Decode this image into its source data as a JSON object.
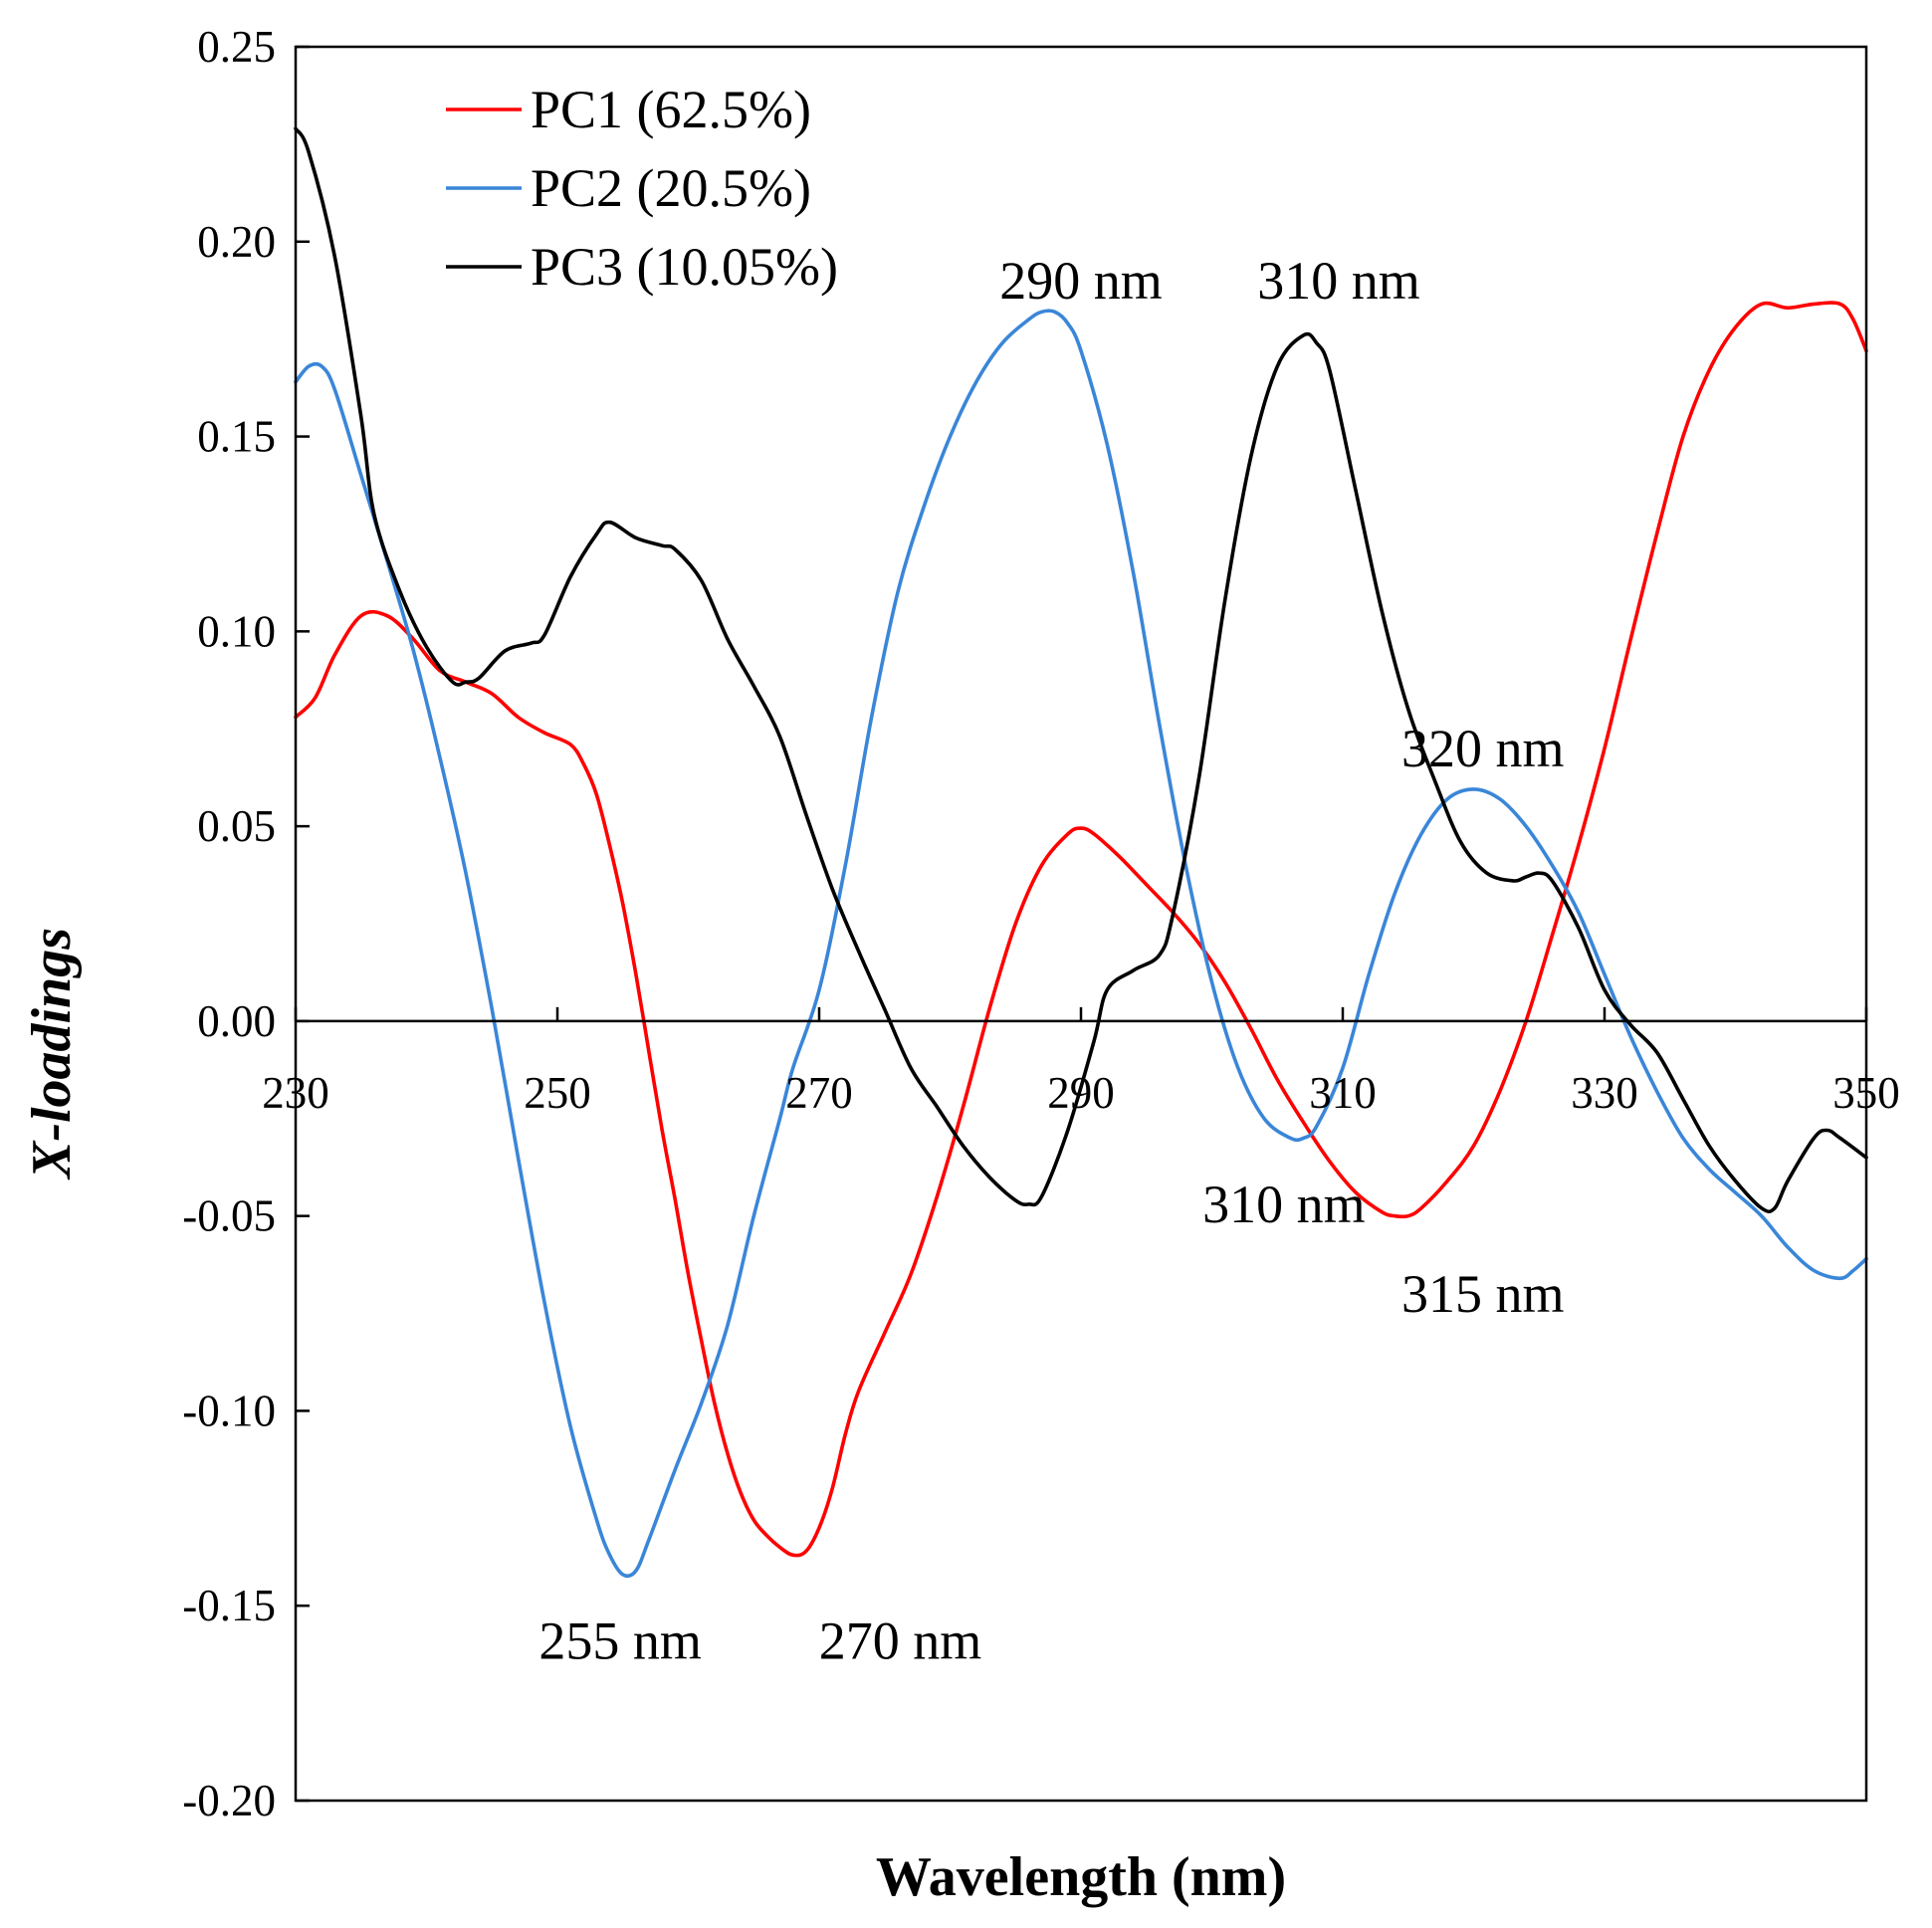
{
  "chart_data": {
    "type": "line",
    "title": "",
    "xlabel": "Wavelength (nm)",
    "ylabel": "X-loadings",
    "xlim": [
      230,
      350
    ],
    "ylim": [
      -0.2,
      0.25
    ],
    "x_ticks": [
      230,
      250,
      270,
      290,
      310,
      330,
      350
    ],
    "x_tick_labels": [
      "230",
      "250",
      "270",
      "290",
      "310",
      "330",
      "350"
    ],
    "y_ticks": [
      0.25,
      0.2,
      0.15,
      0.1,
      0.05,
      0.0,
      -0.05,
      -0.1,
      -0.15,
      -0.2
    ],
    "y_tick_labels": [
      "0.25",
      "0.20",
      "0.15",
      "0.10",
      "0.05",
      "0.00",
      "-0.05",
      "-0.10",
      "-0.15",
      "-0.20"
    ],
    "grid": false,
    "legend_position": "top-left",
    "series": [
      {
        "name": "PC1 (62.5%)",
        "color": "#ff0000",
        "points": [
          [
            230,
            0.078
          ],
          [
            231.5,
            0.083
          ],
          [
            233,
            0.094
          ],
          [
            235,
            0.104
          ],
          [
            237,
            0.104
          ],
          [
            239,
            0.098
          ],
          [
            241,
            0.09
          ],
          [
            243,
            0.087
          ],
          [
            245,
            0.084
          ],
          [
            247,
            0.078
          ],
          [
            249,
            0.074
          ],
          [
            251,
            0.071
          ],
          [
            252,
            0.066
          ],
          [
            253,
            0.058
          ],
          [
            254,
            0.045
          ],
          [
            255,
            0.03
          ],
          [
            256,
            0.012
          ],
          [
            257,
            -0.008
          ],
          [
            258,
            -0.028
          ],
          [
            259,
            -0.046
          ],
          [
            260,
            -0.065
          ],
          [
            261,
            -0.082
          ],
          [
            262,
            -0.098
          ],
          [
            263,
            -0.111
          ],
          [
            264,
            -0.121
          ],
          [
            265,
            -0.128
          ],
          [
            266,
            -0.132
          ],
          [
            267,
            -0.135
          ],
          [
            268,
            -0.137
          ],
          [
            269,
            -0.136
          ],
          [
            270,
            -0.13
          ],
          [
            271,
            -0.12
          ],
          [
            272,
            -0.106
          ],
          [
            273,
            -0.095
          ],
          [
            275,
            -0.08
          ],
          [
            277,
            -0.065
          ],
          [
            279,
            -0.045
          ],
          [
            281,
            -0.022
          ],
          [
            283,
            0.003
          ],
          [
            285,
            0.025
          ],
          [
            287,
            0.04
          ],
          [
            289,
            0.048
          ],
          [
            290,
            0.0495
          ],
          [
            291,
            0.048
          ],
          [
            293,
            0.042
          ],
          [
            295,
            0.035
          ],
          [
            297,
            0.028
          ],
          [
            299,
            0.02
          ],
          [
            301,
            0.01
          ],
          [
            303,
            -0.002
          ],
          [
            305,
            -0.015
          ],
          [
            307,
            -0.026
          ],
          [
            309,
            -0.036
          ],
          [
            311,
            -0.044
          ],
          [
            313,
            -0.049
          ],
          [
            314,
            -0.05
          ],
          [
            315,
            -0.05
          ],
          [
            316,
            -0.048
          ],
          [
            318,
            -0.041
          ],
          [
            320,
            -0.032
          ],
          [
            322,
            -0.018
          ],
          [
            324,
            0.0
          ],
          [
            326,
            0.022
          ],
          [
            328,
            0.045
          ],
          [
            330,
            0.07
          ],
          [
            332,
            0.098
          ],
          [
            334,
            0.125
          ],
          [
            336,
            0.15
          ],
          [
            338,
            0.167
          ],
          [
            340,
            0.178
          ],
          [
            342,
            0.184
          ],
          [
            344,
            0.183
          ],
          [
            346,
            0.184
          ],
          [
            348,
            0.184
          ],
          [
            349,
            0.18
          ],
          [
            350,
            0.172
          ]
        ]
      },
      {
        "name": "PC2 (20.5%)",
        "color": "#3a86d8",
        "points": [
          [
            230,
            0.164
          ],
          [
            231,
            0.168
          ],
          [
            232,
            0.168
          ],
          [
            233,
            0.162
          ],
          [
            235,
            0.14
          ],
          [
            237,
            0.118
          ],
          [
            239,
            0.095
          ],
          [
            241,
            0.068
          ],
          [
            243,
            0.038
          ],
          [
            245,
            0.003
          ],
          [
            247,
            -0.035
          ],
          [
            249,
            -0.072
          ],
          [
            251,
            -0.104
          ],
          [
            253,
            -0.128
          ],
          [
            254,
            -0.137
          ],
          [
            255,
            -0.142
          ],
          [
            256,
            -0.141
          ],
          [
            257,
            -0.133
          ],
          [
            259,
            -0.115
          ],
          [
            261,
            -0.098
          ],
          [
            263,
            -0.078
          ],
          [
            265,
            -0.05
          ],
          [
            267,
            -0.025
          ],
          [
            268,
            -0.012
          ],
          [
            270,
            0.008
          ],
          [
            272,
            0.04
          ],
          [
            274,
            0.078
          ],
          [
            276,
            0.11
          ],
          [
            278,
            0.132
          ],
          [
            280,
            0.15
          ],
          [
            282,
            0.164
          ],
          [
            284,
            0.174
          ],
          [
            286,
            0.18
          ],
          [
            287,
            0.182
          ],
          [
            288,
            0.182
          ],
          [
            289,
            0.179
          ],
          [
            290,
            0.172
          ],
          [
            292,
            0.148
          ],
          [
            294,
            0.115
          ],
          [
            296,
            0.076
          ],
          [
            298,
            0.04
          ],
          [
            300,
            0.01
          ],
          [
            302,
            -0.012
          ],
          [
            304,
            -0.025
          ],
          [
            306,
            -0.03
          ],
          [
            307,
            -0.03
          ],
          [
            308,
            -0.027
          ],
          [
            310,
            -0.012
          ],
          [
            312,
            0.012
          ],
          [
            314,
            0.033
          ],
          [
            316,
            0.048
          ],
          [
            318,
            0.057
          ],
          [
            320,
            0.0595
          ],
          [
            322,
            0.057
          ],
          [
            324,
            0.05
          ],
          [
            326,
            0.04
          ],
          [
            328,
            0.028
          ],
          [
            330,
            0.012
          ],
          [
            332,
            -0.004
          ],
          [
            334,
            -0.018
          ],
          [
            336,
            -0.03
          ],
          [
            338,
            -0.038
          ],
          [
            340,
            -0.044
          ],
          [
            342,
            -0.05
          ],
          [
            344,
            -0.058
          ],
          [
            346,
            -0.064
          ],
          [
            348,
            -0.066
          ],
          [
            349,
            -0.064
          ],
          [
            350,
            -0.061
          ]
        ]
      },
      {
        "name": "PC3 (10.05%)",
        "color": "#000000",
        "points": [
          [
            230,
            0.229
          ],
          [
            231,
            0.223
          ],
          [
            233,
            0.196
          ],
          [
            235,
            0.155
          ],
          [
            236,
            0.13
          ],
          [
            238,
            0.11
          ],
          [
            240,
            0.096
          ],
          [
            242,
            0.087
          ],
          [
            243,
            0.087
          ],
          [
            244,
            0.088
          ],
          [
            246,
            0.095
          ],
          [
            248,
            0.097
          ],
          [
            249,
            0.099
          ],
          [
            251,
            0.114
          ],
          [
            253,
            0.125
          ],
          [
            254,
            0.128
          ],
          [
            256,
            0.124
          ],
          [
            258,
            0.122
          ],
          [
            259,
            0.121
          ],
          [
            261,
            0.113
          ],
          [
            263,
            0.098
          ],
          [
            265,
            0.086
          ],
          [
            267,
            0.073
          ],
          [
            269,
            0.053
          ],
          [
            271,
            0.034
          ],
          [
            273,
            0.018
          ],
          [
            275,
            0.003
          ],
          [
            277,
            -0.012
          ],
          [
            279,
            -0.022
          ],
          [
            281,
            -0.032
          ],
          [
            283,
            -0.04
          ],
          [
            285,
            -0.046
          ],
          [
            286,
            -0.047
          ],
          [
            287,
            -0.045
          ],
          [
            289,
            -0.028
          ],
          [
            291,
            -0.005
          ],
          [
            292,
            0.008
          ],
          [
            294,
            0.013
          ],
          [
            296,
            0.017
          ],
          [
            297,
            0.027
          ],
          [
            299,
            0.062
          ],
          [
            301,
            0.108
          ],
          [
            303,
            0.145
          ],
          [
            305,
            0.168
          ],
          [
            307,
            0.176
          ],
          [
            308,
            0.174
          ],
          [
            309,
            0.167
          ],
          [
            311,
            0.136
          ],
          [
            313,
            0.105
          ],
          [
            315,
            0.08
          ],
          [
            317,
            0.062
          ],
          [
            319,
            0.046
          ],
          [
            321,
            0.038
          ],
          [
            323,
            0.036
          ],
          [
            324,
            0.037
          ],
          [
            325,
            0.038
          ],
          [
            326,
            0.036
          ],
          [
            328,
            0.024
          ],
          [
            330,
            0.008
          ],
          [
            332,
            -0.001
          ],
          [
            334,
            -0.008
          ],
          [
            336,
            -0.02
          ],
          [
            338,
            -0.032
          ],
          [
            340,
            -0.041
          ],
          [
            342,
            -0.048
          ],
          [
            343,
            -0.048
          ],
          [
            344,
            -0.041
          ],
          [
            346,
            -0.03
          ],
          [
            347,
            -0.028
          ],
          [
            348,
            -0.03
          ],
          [
            350,
            -0.035
          ]
        ]
      }
    ],
    "annotations": [
      {
        "text": "290 nm",
        "x": 290,
        "y": 0.19
      },
      {
        "text": "310 nm",
        "x": 309.7,
        "y": 0.19
      },
      {
        "text": "320 nm",
        "x": 320.7,
        "y": 0.07
      },
      {
        "text": "310 nm",
        "x": 305.5,
        "y": -0.047
      },
      {
        "text": "315 nm",
        "x": 320.7,
        "y": -0.07
      },
      {
        "text": "255 nm",
        "x": 254.8,
        "y": -0.159
      },
      {
        "text": "270 nm",
        "x": 276.2,
        "y": -0.159
      }
    ]
  }
}
